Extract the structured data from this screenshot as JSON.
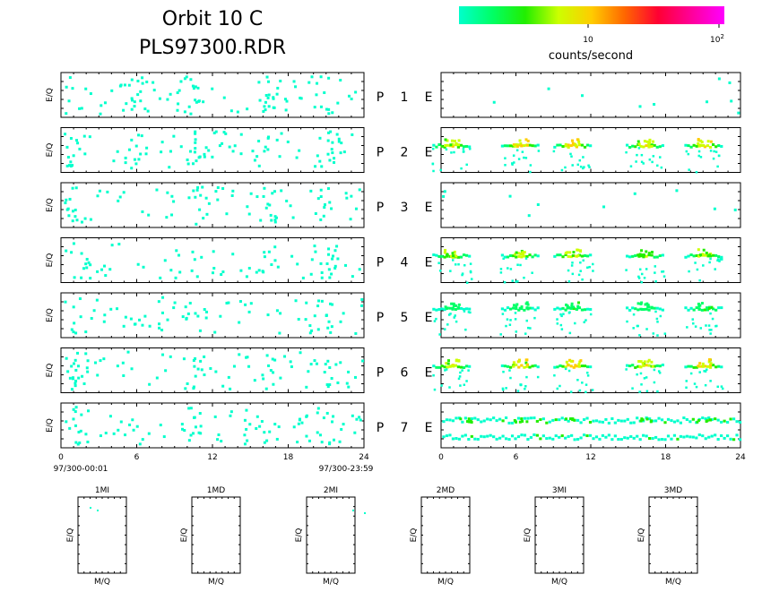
{
  "header": {
    "title_line1": "Orbit 10 C",
    "title_line2": "PLS97300.RDR"
  },
  "colorbar": {
    "label": "counts/second",
    "tick_10": "10",
    "tick_100_base": "10",
    "tick_100_exp": "2",
    "colors": [
      "#00ffcc",
      "#00ff66",
      "#22ee00",
      "#ccff00",
      "#ffcc00",
      "#ff6600",
      "#ff0033",
      "#ff0099",
      "#ff00ff"
    ]
  },
  "axes": {
    "ylabel": "E/Q",
    "xlabel": "M/Q",
    "x_ticks": [
      "0",
      "6",
      "12",
      "18",
      "24"
    ],
    "date_start": "97/300-00:01",
    "date_end": "97/300-23:59"
  },
  "channels": [
    {
      "p": "P",
      "num": "1",
      "e": "E"
    },
    {
      "p": "P",
      "num": "2",
      "e": "E"
    },
    {
      "p": "P",
      "num": "3",
      "e": "E"
    },
    {
      "p": "P",
      "num": "4",
      "e": "E"
    },
    {
      "p": "P",
      "num": "5",
      "e": "E"
    },
    {
      "p": "P",
      "num": "6",
      "e": "E"
    },
    {
      "p": "P",
      "num": "7",
      "e": "E"
    }
  ],
  "mass_panels": [
    {
      "label": "1MI"
    },
    {
      "label": "1MD"
    },
    {
      "label": "2MI"
    },
    {
      "label": "2MD"
    },
    {
      "label": "3MI"
    },
    {
      "label": "3MD"
    }
  ],
  "chart_data": {
    "type": "heatmap",
    "x_range_hours": [
      0,
      24
    ],
    "colorscale": "log counts/second, 1 to 100",
    "left_panels": [
      {
        "channel": "P1",
        "activity": [
          {
            "t": 0.8,
            "level": 0.1
          },
          {
            "t": 5.8,
            "level": 0.1
          },
          {
            "t": 10.5,
            "level": 0.15
          },
          {
            "t": 16.3,
            "level": 0.12
          },
          {
            "t": 21.0,
            "level": 0.15
          }
        ]
      },
      {
        "channel": "P2",
        "activity": [
          {
            "t": 0.8,
            "level": 0.12
          },
          {
            "t": 5.8,
            "level": 0.1
          },
          {
            "t": 10.5,
            "level": 0.15
          },
          {
            "t": 16.3,
            "level": 0.12
          },
          {
            "t": 21.0,
            "level": 0.15
          }
        ]
      },
      {
        "channel": "P3",
        "activity": [
          {
            "t": 1.0,
            "level": 0.1
          },
          {
            "t": 10.5,
            "level": 0.15
          },
          {
            "t": 16.3,
            "level": 0.12
          },
          {
            "t": 21.0,
            "level": 0.12
          }
        ]
      },
      {
        "channel": "P4",
        "activity": [
          {
            "t": 1.0,
            "level": 0.12
          },
          {
            "t": 10.5,
            "level": 0.15
          },
          {
            "t": 16.3,
            "level": 0.12
          },
          {
            "t": 21.0,
            "level": 0.15
          }
        ]
      },
      {
        "channel": "P5",
        "activity": [
          {
            "t": 1.0,
            "level": 0.1
          },
          {
            "t": 10.5,
            "level": 0.12
          },
          {
            "t": 21.0,
            "level": 0.12
          }
        ]
      },
      {
        "channel": "P6",
        "activity": [
          {
            "t": 1.0,
            "level": 0.1
          },
          {
            "t": 10.5,
            "level": 0.15
          },
          {
            "t": 16.3,
            "level": 0.12
          },
          {
            "t": 21.0,
            "level": 0.12
          }
        ]
      },
      {
        "channel": "P7",
        "activity": [
          {
            "t": 1.0,
            "level": 0.12
          },
          {
            "t": 10.5,
            "level": 0.15
          },
          {
            "t": 16.3,
            "level": 0.12
          },
          {
            "t": 21.0,
            "level": 0.15
          }
        ]
      }
    ],
    "right_panels": [
      {
        "channel": "P1",
        "bursts": []
      },
      {
        "channel": "P2",
        "bursts": [
          {
            "t": 0.8,
            "level": 0.45
          },
          {
            "t": 6.3,
            "level": 0.5
          },
          {
            "t": 10.5,
            "level": 0.55
          },
          {
            "t": 16.3,
            "level": 0.45
          },
          {
            "t": 21.0,
            "level": 0.5
          }
        ]
      },
      {
        "channel": "P3",
        "bursts": []
      },
      {
        "channel": "P4",
        "bursts": [
          {
            "t": 0.8,
            "level": 0.35
          },
          {
            "t": 6.3,
            "level": 0.4
          },
          {
            "t": 10.5,
            "level": 0.45
          },
          {
            "t": 16.3,
            "level": 0.35
          },
          {
            "t": 21.0,
            "level": 0.4
          }
        ]
      },
      {
        "channel": "P5",
        "bursts": [
          {
            "t": 0.8,
            "level": 0.1
          },
          {
            "t": 6.3,
            "level": 0.15
          },
          {
            "t": 10.5,
            "level": 0.2
          },
          {
            "t": 16.3,
            "level": 0.15
          },
          {
            "t": 21.0,
            "level": 0.2
          }
        ]
      },
      {
        "channel": "P6",
        "bursts": [
          {
            "t": 0.8,
            "level": 0.45
          },
          {
            "t": 6.3,
            "level": 0.5
          },
          {
            "t": 10.5,
            "level": 0.55
          },
          {
            "t": 16.3,
            "level": 0.45
          },
          {
            "t": 21.0,
            "level": 0.5
          }
        ]
      },
      {
        "channel": "P7",
        "bursts": [
          {
            "t": 2.0,
            "level": 0.25
          },
          {
            "t": 6.3,
            "level": 0.3
          },
          {
            "t": 10.5,
            "level": 0.3
          },
          {
            "t": 16.3,
            "level": 0.3
          },
          {
            "t": 21.0,
            "level": 0.35
          }
        ]
      }
    ]
  }
}
